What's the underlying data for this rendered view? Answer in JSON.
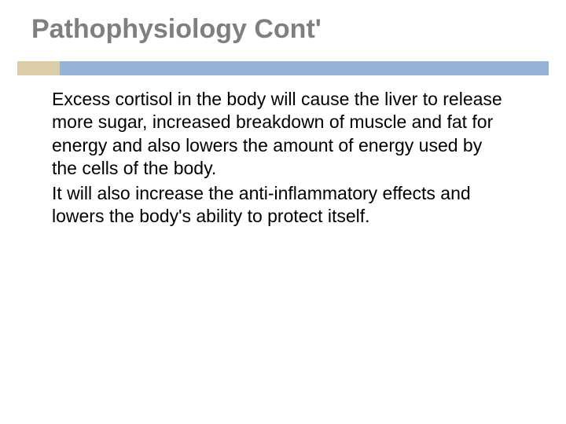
{
  "title": {
    "text": "Pathophysiology Cont'",
    "color": "#7f7f7f",
    "fontsize": 34
  },
  "bar": {
    "accent_color": "#dbcda5",
    "main_color": "#94b3d6"
  },
  "body": {
    "fontsize": 23,
    "color": "#000000",
    "paragraphs": [
      "Excess cortisol in the body will cause the liver to release more sugar, increased breakdown of muscle and fat for energy and also lowers the amount of energy used by the cells of the body.",
      "It  will also increase the anti-inflammatory effects and lowers the body's ability to protect itself."
    ]
  },
  "background_color": "#ffffff"
}
